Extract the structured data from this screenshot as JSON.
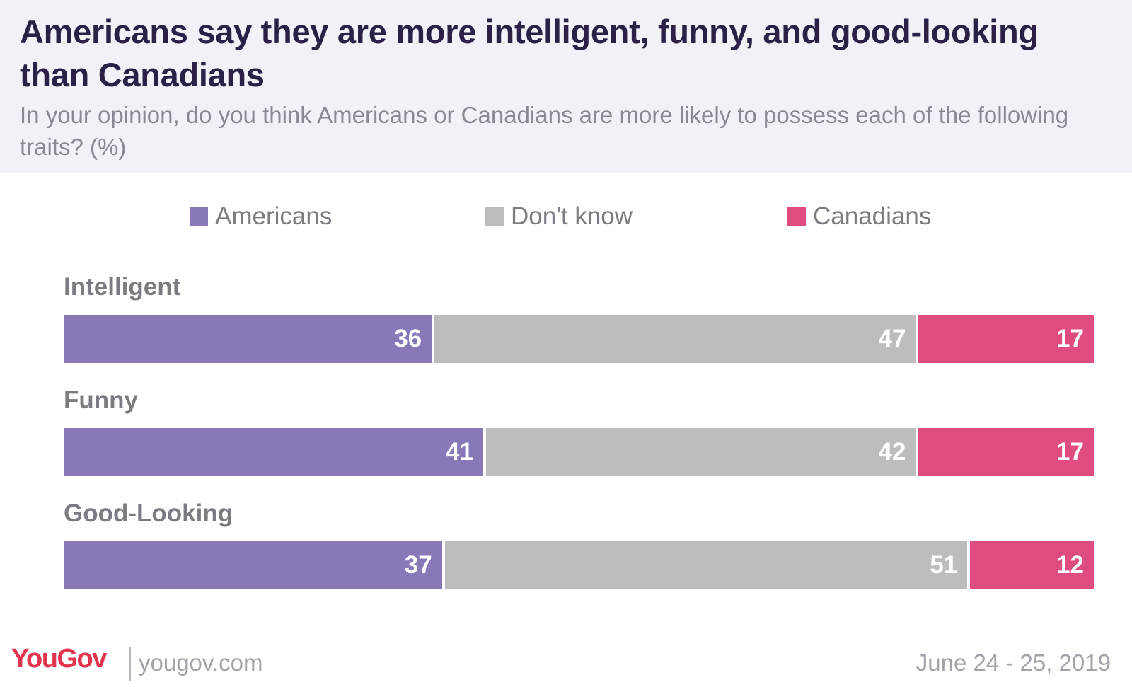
{
  "header": {
    "title": "Americans say they are more intelligent, funny, and good-looking than Canadians",
    "subtitle": "In your opinion, do you think Americans or Canadians are more likely to possess each of the following traits? (%)"
  },
  "colors": {
    "americans": "#8878b8",
    "dont_know": "#bdbdbd",
    "canadians": "#df4c80",
    "header_bg": "#f2f1f8",
    "title": "#2b2147"
  },
  "chart_data": {
    "type": "bar",
    "orientation": "horizontal",
    "stacked": true,
    "categories": [
      "Intelligent",
      "Funny",
      "Good-Looking"
    ],
    "series": [
      {
        "name": "Americans",
        "values": [
          36,
          41,
          37
        ]
      },
      {
        "name": "Don't know",
        "values": [
          47,
          42,
          51
        ]
      },
      {
        "name": "Canadians",
        "values": [
          17,
          17,
          12
        ]
      }
    ],
    "xlim": [
      0,
      100
    ],
    "legend_position": "top",
    "grid": false
  },
  "footer": {
    "brand_you": "You",
    "brand_gov": "Gov",
    "url": "yougov.com",
    "date": "June 24 - 25, 2019"
  }
}
